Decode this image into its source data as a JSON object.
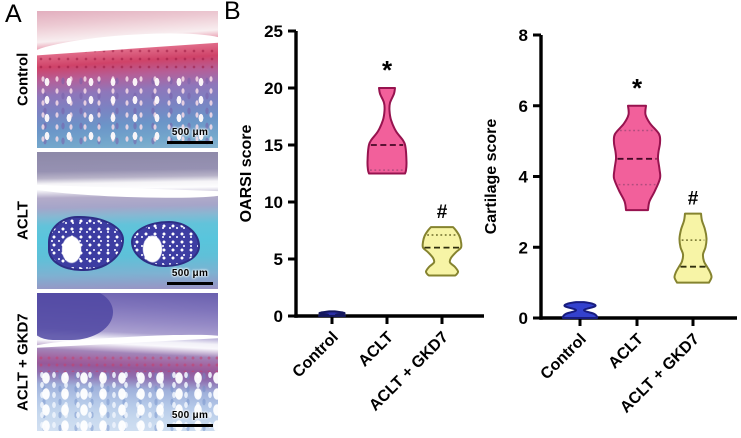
{
  "panels": {
    "a_label": "A",
    "b_label": "B"
  },
  "histology": {
    "rows": [
      {
        "label": "Control",
        "scale_bar": "500 μm"
      },
      {
        "label": "ACLT",
        "scale_bar": "500 μm"
      },
      {
        "label": "ACLT + GKD7",
        "scale_bar": "500 μm"
      }
    ]
  },
  "chart_data": [
    {
      "type": "violin",
      "title": "",
      "ylabel": "OARSI score",
      "ylim": [
        0,
        25
      ],
      "yticks": [
        0,
        5,
        10,
        15,
        20,
        25
      ],
      "categories": [
        "Control",
        "ACLT",
        "ACLT + GKD7"
      ],
      "grid": false,
      "series": [
        {
          "group": "Control",
          "color": "#2a2ea6",
          "stroke": "#14175e",
          "annotation": "",
          "min": 0,
          "max": 0.4,
          "profile": [
            [
              0.4,
              3
            ],
            [
              0.3,
              11
            ],
            [
              0.22,
              12
            ],
            [
              0.12,
              4
            ],
            [
              0.05,
              12
            ],
            [
              0,
              13
            ]
          ]
        },
        {
          "group": "ACLT",
          "color": "#f2609b",
          "stroke": "#97134f",
          "annotation": "*",
          "min": 12.5,
          "max": 20,
          "median": 15,
          "quartiles": [
            12.8
          ],
          "median_color": "#450a26",
          "quartile_color": "#b14d7e",
          "profile": [
            [
              20,
              8
            ],
            [
              19.5,
              7
            ],
            [
              18.7,
              3
            ],
            [
              18,
              2.5
            ],
            [
              17.2,
              4
            ],
            [
              16.2,
              9
            ],
            [
              15.4,
              16
            ],
            [
              14.8,
              18.5
            ],
            [
              13.5,
              19.5
            ],
            [
              12.8,
              19
            ],
            [
              12.5,
              18
            ]
          ]
        },
        {
          "group": "ACLT + GKD7",
          "color": "#f7f4a6",
          "stroke": "#85832f",
          "annotation": "#",
          "min": 3.55,
          "max": 7.8,
          "median": 6,
          "quartiles": [
            7.1
          ],
          "median_color": "#2f2e0e",
          "quartile_color": "#6f6d2a",
          "profile": [
            [
              7.8,
              11
            ],
            [
              7.5,
              14
            ],
            [
              7,
              17.5
            ],
            [
              6.5,
              19
            ],
            [
              6,
              19
            ],
            [
              5.6,
              14
            ],
            [
              5.1,
              9
            ],
            [
              4.7,
              8
            ],
            [
              4.3,
              13
            ],
            [
              3.9,
              16
            ],
            [
              3.65,
              14.5
            ],
            [
              3.55,
              13
            ]
          ]
        }
      ]
    },
    {
      "type": "violin",
      "title": "",
      "ylabel": "Cartilage score",
      "ylim": [
        0,
        8
      ],
      "yticks": [
        0,
        2,
        4,
        6,
        8
      ],
      "categories": [
        "Control",
        "ACLT",
        "ACLT + GKD7"
      ],
      "grid": false,
      "series": [
        {
          "group": "Control",
          "color": "#3442ce",
          "stroke": "#181c7e",
          "annotation": "",
          "min": 0,
          "max": 0.45,
          "profile": [
            [
              0.45,
              4
            ],
            [
              0.4,
              13
            ],
            [
              0.33,
              15
            ],
            [
              0.22,
              4
            ],
            [
              0.12,
              14
            ],
            [
              0.04,
              17
            ],
            [
              0,
              17
            ]
          ]
        },
        {
          "group": "ACLT",
          "color": "#f2609b",
          "stroke": "#97134f",
          "annotation": "*",
          "min": 3.0,
          "max": 6.0,
          "median": 4.5,
          "quartiles": [
            5.3,
            3.77
          ],
          "median_color": "#450a26",
          "quartile_color": "#b14d7e",
          "profile": [
            [
              6,
              9
            ],
            [
              5.75,
              8.5
            ],
            [
              5.5,
              13
            ],
            [
              5.2,
              22
            ],
            [
              4.95,
              23
            ],
            [
              4.7,
              21.5
            ],
            [
              4.5,
              21
            ],
            [
              4.2,
              22.5
            ],
            [
              3.95,
              23
            ],
            [
              3.6,
              18
            ],
            [
              3.3,
              12.5
            ],
            [
              3.05,
              11
            ]
          ]
        },
        {
          "group": "ACLT + GKD7",
          "color": "#f7f4a6",
          "stroke": "#85832f",
          "annotation": "#",
          "min": 1.0,
          "max": 2.95,
          "median": 1.45,
          "quartiles": [
            2.2
          ],
          "median_color": "#2f2e0e",
          "quartile_color": "#6f6d2a",
          "profile": [
            [
              2.95,
              8
            ],
            [
              2.75,
              9
            ],
            [
              2.5,
              12
            ],
            [
              2.25,
              13.5
            ],
            [
              2.0,
              12.5
            ],
            [
              1.8,
              10
            ],
            [
              1.6,
              11
            ],
            [
              1.45,
              14
            ],
            [
              1.3,
              17
            ],
            [
              1.15,
              18.5
            ],
            [
              1.0,
              16
            ]
          ]
        }
      ]
    }
  ]
}
